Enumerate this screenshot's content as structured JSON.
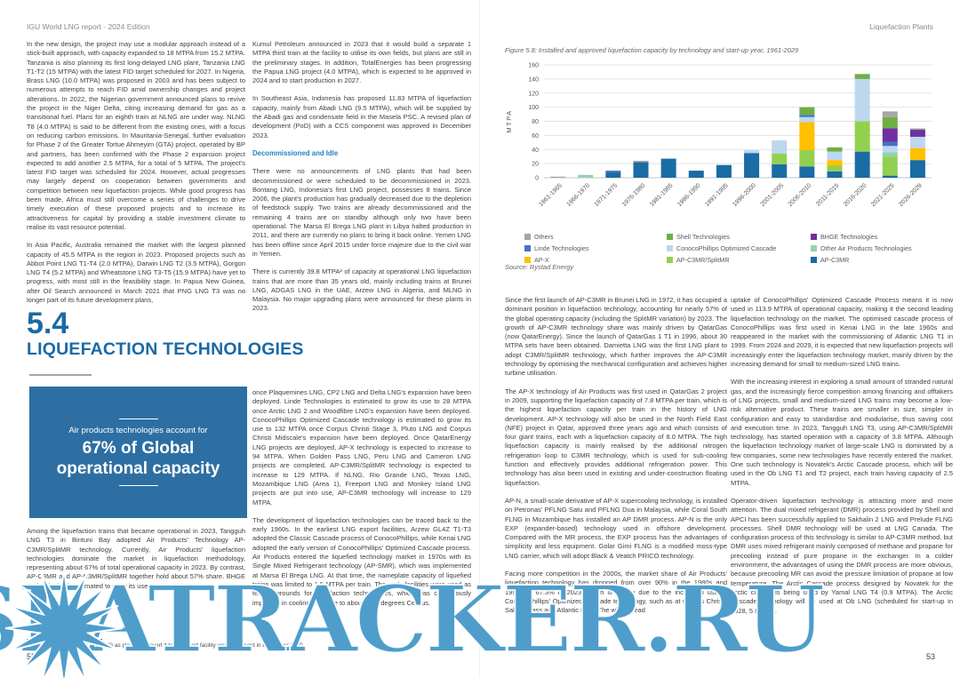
{
  "meta": {
    "header_left": "IGU World LNG report - 2024 Edition",
    "header_right": "Liquefaction Plants",
    "page_left": "52",
    "page_right": "53",
    "watermark": "SEATRACKER.RU"
  },
  "theme": {
    "heading_blue": "#1a6aa5",
    "subheading_blue": "#1f83c4",
    "callout_bg": "#2d6fa3",
    "watermark_blue": "#4e9dcb"
  },
  "left_page": {
    "col1_paragraphs": [
      "In the new design, the project may use a modular approach instead of a stick-built approach, with capacity expanded to 18 MTPA from 15.2 MTPA. Tanzania is also planning its first long-delayed LNG plant, Tanzania LNG T1-T2 (15 MTPA) with the latest FID target scheduled for 2027. In Nigeria, Brass LNG (10.0 MTPA) was proposed in 2003 and has been subject to numerous attempts to reach FID amid ownership changes and project alterations. In 2022, the Nigerian government announced plans to revive the project in the Niger Delta, citing increasing demand for gas as a transitional fuel. Plans for an eighth train at NLNG are under way. NLNG T8 (4.0 MTPA) is said to be different from the existing ones, with a focus on reducing carbon emissions. In Mauritania-Senegal, further evaluation for Phase 2 of the Greater Tortue Ahmeyim (GTA) project, operated by BP and partners, has been confirmed with the Phase 2 expansion project expected to add another 2.5 MTPA, for a total of 5 MTPA. The project's latest FID target was scheduled for 2024. However, actual progresses may largely depend on cooperation between governments and competition between new liquefaction projects. While good progress has been made, Africa must still overcome a series of challenges to drive timely execution of these proposed projects and to increase its attractiveness for capital by providing a stable investment climate to realise its vast resource potential.",
      "In Asia Pacific, Australia remained the market with the largest planned capacity of 45.5 MTPA in the region in 2023. Proposed projects such as Abbot Point LNG T1-T4 (2.0 MTPA), Darwin LNG T2 (3.5 MTPA), Gorgon LNG T4 (5.2 MTPA) and Wheatstone LNG T3-T5 (15.9 MTPA) have yet to progress, with most still in the feasibility stage. In Papua New Guinea, after Oil Search announced in March 2021 that PNG LNG T3 was no longer part of its future development plans,"
    ],
    "col2_paragraphs": [
      "Kumul Petroleum announced in 2023 that it would build a separate 1 MTPA third train at the facility to utilise its own fields, but plans are still in the preliminary stages. In addition, TotalEnergies has been progressing the Papua LNG project (4.0 MTPA), which is expected to be approved in 2024 and to start production in 2027.",
      "In Southeast Asia, Indonesia has proposed 11.83 MTPA of liquefaction capacity, mainly from Abadi LNG (9.5 MTPA), which will be supplied by the Abadi gas and condensate field in the Masela PSC. A revised plan of development (PoD) with a CCS component was approved in December 2023."
    ],
    "col2_subheading": "Decommissioned and Idle",
    "col2_paragraphs_after": [
      "There were no announcements of LNG plants that had been decommissioned or were scheduled to be decommissioned in 2023. Bontang LNG, Indonesia's first LNG project, possesses 8 trains. Since 2006, the plant's production has gradually decreased due to the depletion of feedstock supply. Two trains are already decommissioned and the remaining 4 trains are on standby although only two have been operational. The Marsa El Brega LNG plant in Libya halted production in 2011, and there are currently no plans to bring it back online. Yemen LNG has been offline since April 2015 under force majeure due to the civil war in Yemen.",
      "There is currently 39.8 MTPA² of capacity at operational LNG liquefaction trains that are more than 35 years old, mainly including trains at Brunei LNG, ADGAS LNG in the UAE, Arzew LNG in Algeria, and MLNG in Malaysia. No major upgrading plans were announced for these plants in 2023."
    ],
    "section_number": "5.4",
    "section_title": "LIQUEFACTION TECHNOLOGIES",
    "callout": {
      "line1": "Air products technologies account for",
      "main_line1": "67% of Global",
      "main_line2": "operational capacity"
    },
    "among_paragraph": "Among the liquefaction trains that became operational in 2023, Tangguh LNG T3 in Bintuni Bay adopted Air Products' Technology AP-C3MR/SplitMR technology. Currently, Air Products' liquefaction technologies dominate the market in liquefaction methodology, representing about 67% of total operational capacity in 2023. By contrast, AP-C3MR and AP-C3MR/SplitMR together hold about 57% share. BHGE Technologies is estimated to grow its use to 51 MTPA",
    "col2_bottom_paragraphs": [
      "once Plaquemines LNG, CP2 LNG and Delta LNG's expansion have been deployed. Linde Technologies is estimated to grow its use to 28 MTPA once Arctic LNG 2 and Woodfibre LNG's expansion have been deployed. ConocoPhillips Optimized Cascade technology is estimated to grow its use to 132 MTPA once Corpus Christi Stage 3, Pluto LNG and Corpus Christi Midscale's expansion have been deployed. Once QatarEnergy LNG projects are deployed, AP-X technology is expected to increase to 94 MTPA. When Golden Pass LNG, Peru LNG and Cameron LNG projects are completed, AP-C3MR/SplitMR technology is expected to increase to 129 MTPA. If NLNG, Rio Grande LNG, Texas LNG, Mozambique LNG (Area 1), Freeport LNG and Monkey Island LNG projects are put into use, AP-C3MR technology will increase to 129 MTPA.",
      "The development of liquefaction technologies can be traced back to the early 1960s. In the earliest LNG export facilities, Arzew GL4Z T1-T3 adopted the Classic Cascade process of ConocoPhillips, while Kenai LNG adopted the early version of ConocoPhillips' Optimized Cascade process. Air Products entered the liquefied technology market in 1970s with its Single Mixed Refrigerant technology (AP-SMR), which was implemented at Marsa El Brega LNG. At that time, the nameplate capacity of liquefied trains was limited to 1.5 MTPA per train. The early facilities were used as testing grounds for liquefaction technologies, which was continuously improved in cooling methane to about -162 degrees Celsius."
    ],
    "footnote": "² This does not include Kenai LNG as plans to convert it to an import facility were approved in December 2020."
  },
  "right_page": {
    "source": "Source: Rystad Energy",
    "col1_paragraphs": [
      "Since the first launch of AP-C3MR in Brunei LNG in 1972, it has occupied a dominant position in liquefaction technology, accounting for nearly 57% of the global operating capacity (including the SplitMR variation) by 2023. The growth of AP-C3MR technology share was mainly driven by QatarGas (now QatarEnergy). Since the launch of QatarGas 1 T1 in 1996, about 30 MTPA sets have been obtained. Damietta LNG was the first LNG plant to adopt C3MR/SplitMR technology, which further improves the AP-C3MR technology by optimising the mechanical configuration and achieves higher turbine utilisation.",
      "The AP-X technology of Air Products was first used in QatarGas 2 project in 2009, supporting the liquefaction capacity of 7.8 MTPA per train, which is the highest liquefaction capacity per train in the history of LNG development. AP-X technology will also be used in the North Field East (NFE) project in Qatar, approved three years ago and which consists of four giant trains, each with a liquefaction capacity of 8.0 MTPA. The high liquefaction capacity is mainly realised by the additional nitrogen refrigeration loop to C3MR technology, which is used for sub-cooling function and effectively provides additional refrigeration power. This technology has also been used in existing and under-construction floating liquefaction.",
      "AP-N, a small-scale derivative of AP-X supercooling technology, is installed on Petronas' PFLNG Satu and PFLNG Dua in Malaysia, while Coral South FLNG in Mozambique has installed an AP DMR process. AP-N is the only EXP (expander-based) technology used in offshore development. Compared with the MR process, the EXP process has the advantages of simplicity and less equipment. Golar Gimi FLNG is a modified moss-type LNG carrier, which will adopt Black & Veatch PRICO technology.",
      "Facing more competition in the 2000s, the market share of Air Products' liquefaction technology has dropped from over 90% in the 1980s and 1990s to 67.3% in 2023, which is mainly due to the increased use of ConocoPhillips' Optimized Cascade technology, such as at Corpus Christi, Sabine Pass and Atlantic LNG. The widespread"
    ],
    "col2_paragraphs": [
      "uptake of ConocoPhillips' Optimized Cascade Process means it is now used in 113.9 MTPA of operational capacity, making it the second leading liquefaction technology on the market. The optimised cascade process of ConocoPhillips was first used in Kenai LNG in the late 1960s and reappeared in the market with the commissioning of Atlantic LNG T1 in 1999. From 2024 and 2029, it is expected that new liquefaction projects will increasingly enter the liquefaction technology market, mainly driven by the increasing demand for small to medium-sized LNG trains.",
      "With the increasing interest in exploring a small amount of stranded natural gas, and the increasingly fierce competition among financing and offtakers of LNG projects, small and medium-sized LNG trains may become a low-risk alternative product. These trains are smaller in size, simpler in configuration and easy to standardise and modularise, thus saving cost and execution time. In 2023, Tangguh LNG T3, using AP-C3MR/SplitMR technology, has started operation with a capacity of 3.8 MTPA. Although the liquefaction technology market of large-scale LNG is dominated by a few companies, some new technologies have recently entered the market. One such technology is Novatek's Arctic Cascade process, which will be used in the Ob LNG T1 and T2 project, each train having capacity of 2.5 MTPA.",
      "Operator-driven liquefaction technology is attracting more and more attention. The dual mixed refrigerant (DMR) process provided by Shell and APCI has been successfully applied to Sakhalin 2 LNG and Prelude FLNG processes. Shell DMR technology will be used at LNG Canada. The configuration process of this technology is similar to AP-C3MR method, but DMR uses mixed refrigerant mainly composed of methane and propane for precooling instead of pure propane in the exchanger. In a colder environment, the advantages of using the DMR process are more obvious, because precooling MR can avoid the pressure limitation of propane at low temperature. The Arctic Cascade process designed by Novatek for the Arctic climate is being used by Yamal LNG T4 (0.9 MTPA). The Arctic Cascade technology will be used at Ob LNG (scheduled for start-up in 2028, 5 MTPA)."
    ]
  },
  "chart_data": {
    "type": "bar",
    "stacked": true,
    "title": "Figure 5.8: Installed and approved liquefaction capacity by technology and start-up year, 1961-2029",
    "ylabel": "MTPA",
    "ylim": [
      0,
      160
    ],
    "ytick_step": 20,
    "grid": true,
    "legend_position": "bottom",
    "categories": [
      "1961-1965",
      "1966-1970",
      "1971-1975",
      "1976-1980",
      "1981-1985",
      "1986-1990",
      "1991-1995",
      "1996-2000",
      "2001-2005",
      "2006-2010",
      "2011-2015",
      "2016-2020",
      "2021-2025",
      "2026-2029"
    ],
    "series": [
      {
        "name": "AP-C3MR",
        "color": "#1a6ca4",
        "values": [
          0,
          0,
          8,
          22,
          27,
          10,
          18,
          35,
          19,
          16,
          9,
          37,
          3,
          25
        ]
      },
      {
        "name": "AP-C3MR/SplitMR",
        "color": "#92d050",
        "values": [
          0,
          0,
          0,
          0,
          0,
          0,
          0,
          0,
          15,
          23,
          8,
          43,
          27,
          0
        ]
      },
      {
        "name": "AP-X",
        "color": "#ffc000",
        "values": [
          0,
          0,
          0,
          0,
          0,
          0,
          0,
          0,
          0,
          40,
          8,
          0,
          0,
          17
        ]
      },
      {
        "name": "Other Air Products Technologies",
        "color": "#94d2af",
        "values": [
          0,
          4,
          0,
          0,
          0,
          0,
          0,
          0,
          0,
          0,
          0,
          0,
          6,
          0
        ]
      },
      {
        "name": "ConocoPhillips Optimized Cascade",
        "color": "#bdd7ee",
        "values": [
          0,
          0,
          0,
          0,
          0,
          0,
          0,
          4,
          19,
          7,
          12,
          60,
          9,
          16
        ]
      },
      {
        "name": "Linde Technologies",
        "color": "#4472c4",
        "values": [
          0,
          0,
          2,
          0,
          0,
          0,
          0,
          0,
          0,
          3,
          0,
          0,
          6,
          0
        ]
      },
      {
        "name": "BHGE Technologies",
        "color": "#7030a0",
        "values": [
          0,
          0,
          0,
          0,
          0,
          0,
          0,
          0,
          0,
          0,
          0,
          0,
          19,
          10
        ]
      },
      {
        "name": "Shell Technologies",
        "color": "#70ad47",
        "values": [
          0,
          0,
          0,
          0,
          0,
          0,
          0,
          0,
          0,
          11,
          6,
          7,
          16,
          0
        ]
      },
      {
        "name": "Others",
        "color": "#a6a6a6",
        "values": [
          1.5,
          0,
          0,
          2,
          0,
          0,
          0,
          0,
          0,
          0,
          0,
          0,
          8,
          2
        ]
      }
    ],
    "legend": [
      "Others",
      "Shell Technologies",
      "BHGE Technologies",
      "Linde Technologies",
      "ConocoPhillips Optimized Cascade",
      "Other Air Products Technologies",
      "AP-X",
      "AP-C3MR/SplitMR",
      "AP-C3MR"
    ]
  }
}
